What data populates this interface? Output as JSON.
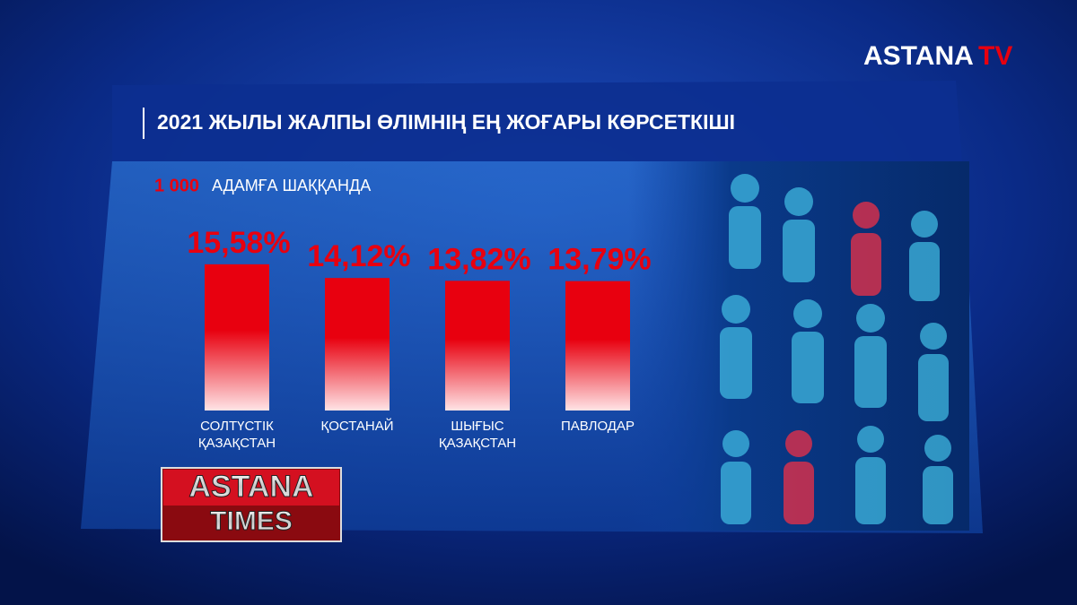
{
  "branding": {
    "channel": [
      "ASTANA",
      "TV"
    ],
    "show": [
      "ASTANA",
      "TIMES"
    ]
  },
  "chart_data": {
    "type": "bar",
    "title": "2021 ЖЫЛЫ ЖАЛПЫ ӨЛІМНІҢ ЕҢ ЖОҒАРЫ КӨРСЕТКІШІ",
    "subtitle": [
      "1 000",
      "АДАМҒА ШАҚҚАНДА"
    ],
    "categories": [
      [
        "СОЛТҮСТІК",
        "ҚАЗАҚСТАН"
      ],
      [
        "ҚОСТАНАЙ"
      ],
      [
        "ШЫҒЫС",
        "ҚАЗАҚСТАН"
      ],
      [
        "ПАВЛОДАР"
      ]
    ],
    "values": [
      15.58,
      14.12,
      13.82,
      13.79
    ],
    "value_labels": [
      "15,58%",
      "14,12%",
      "13,82%",
      "13,79%"
    ],
    "color": "#e8000f",
    "ylim": [
      0,
      17
    ]
  }
}
